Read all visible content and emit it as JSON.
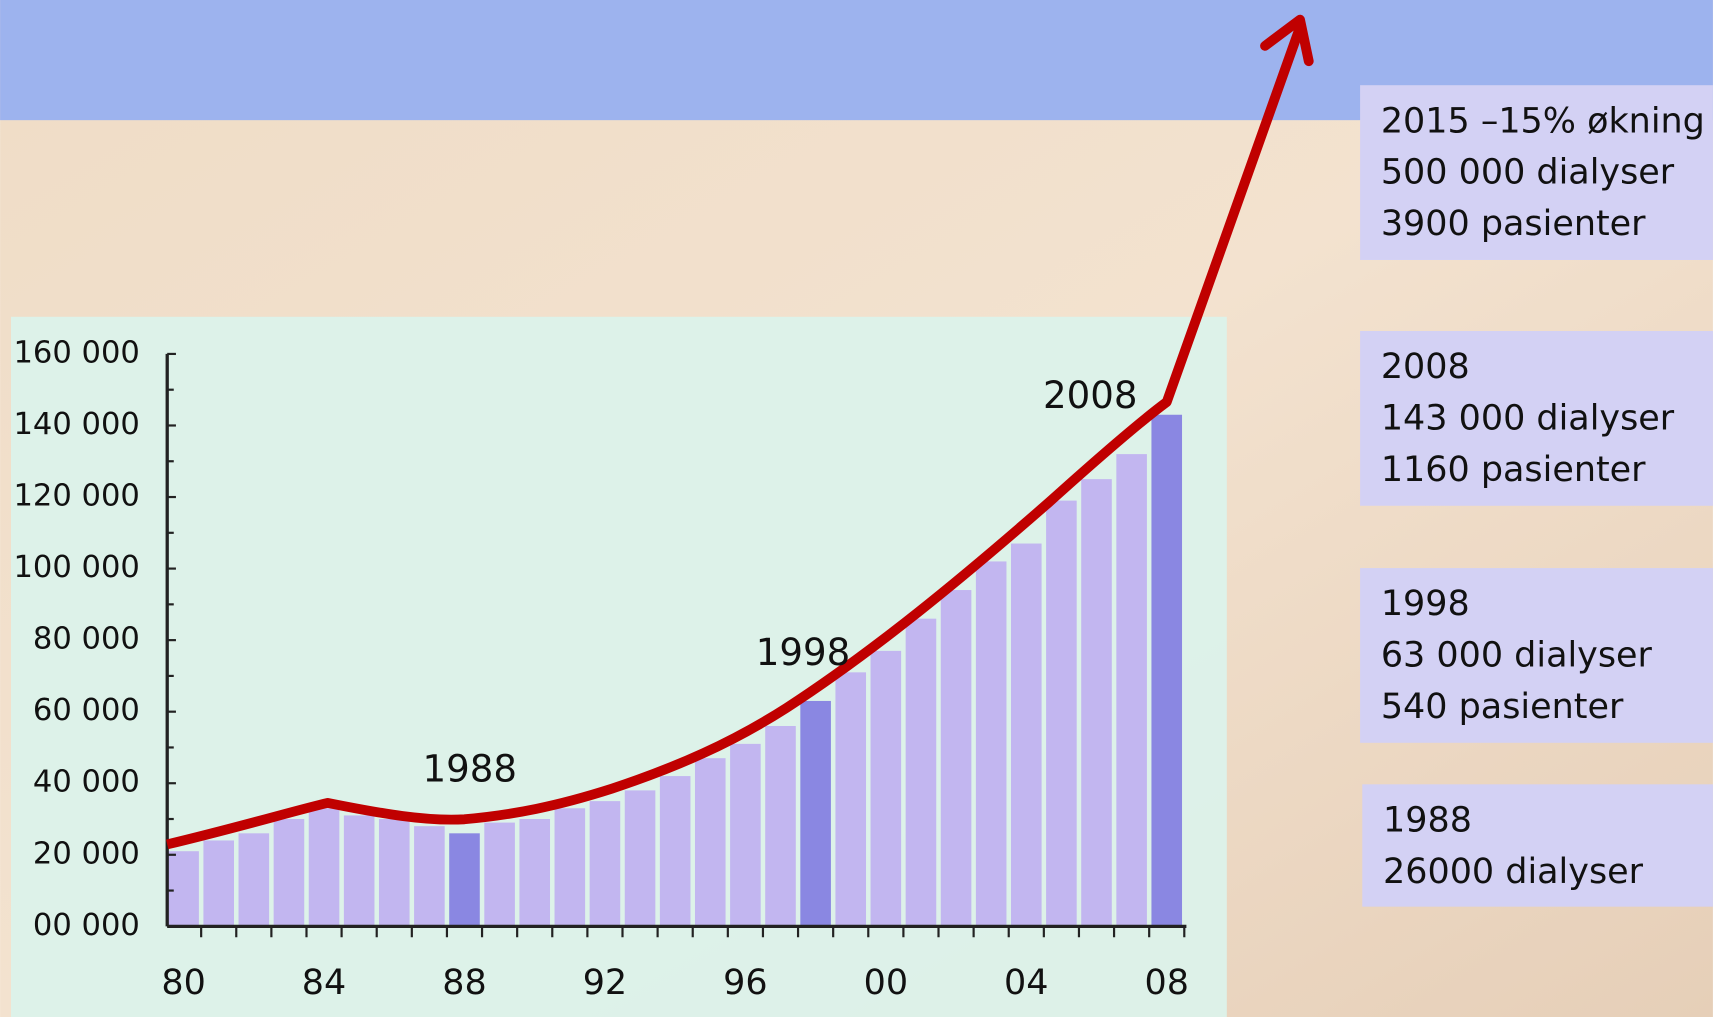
{
  "chart_data": {
    "type": "bar",
    "categories": [
      "80",
      null,
      null,
      null,
      "84",
      null,
      null,
      null,
      "88",
      null,
      null,
      null,
      "92",
      null,
      null,
      null,
      "96",
      null,
      null,
      null,
      "00",
      null,
      null,
      null,
      "04",
      null,
      null,
      null,
      "08"
    ],
    "values": [
      21000,
      24000,
      26000,
      30000,
      33000,
      31000,
      30000,
      28000,
      26000,
      29000,
      30000,
      33000,
      35000,
      38000,
      42000,
      47000,
      51000,
      56000,
      63000,
      71000,
      77000,
      86000,
      94000,
      102000,
      107000,
      119000,
      125000,
      132000,
      143000
    ],
    "colors": [
      "#c2b6f0",
      "#c2b6f0",
      "#c2b6f0",
      "#c2b6f0",
      "#c2b6f0",
      "#c2b6f0",
      "#c2b6f0",
      "#c2b6f0",
      "#8a87e2",
      "#c2b6f0",
      "#c2b6f0",
      "#c2b6f0",
      "#c2b6f0",
      "#c2b6f0",
      "#c2b6f0",
      "#c2b6f0",
      "#c2b6f0",
      "#c2b6f0",
      "#8a87e2",
      "#c2b6f0",
      "#c2b6f0",
      "#c2b6f0",
      "#c2b6f0",
      "#c2b6f0",
      "#c2b6f0",
      "#c2b6f0",
      "#c2b6f0",
      "#c2b6f0",
      "#8a87e2"
    ],
    "ylim": [
      0,
      160000
    ],
    "yticks": [
      {
        "value": 0,
        "label": "00 000"
      },
      {
        "value": 20000,
        "label": "20 000"
      },
      {
        "value": 40000,
        "label": "40 000"
      },
      {
        "value": 60000,
        "label": "60 000"
      },
      {
        "value": 80000,
        "label": "80 000"
      },
      {
        "value": 100000,
        "label": "100 000"
      },
      {
        "value": 120000,
        "label": "120 000"
      },
      {
        "value": 140000,
        "label": "140 000"
      },
      {
        "value": 160000,
        "label": "160 000"
      }
    ],
    "annotations": [
      "1988",
      "1998",
      "2008"
    ]
  },
  "info_boxes": [
    [
      "2015 –15% økning",
      "500 000 dialyser",
      "3900 pasienter"
    ],
    [
      "2008",
      "143 000 dialyser",
      "1160 pasienter"
    ],
    [
      "1998",
      "63 000 dialyser",
      "540 pasienter"
    ],
    [
      "1988",
      "26000 dialyser"
    ]
  ]
}
